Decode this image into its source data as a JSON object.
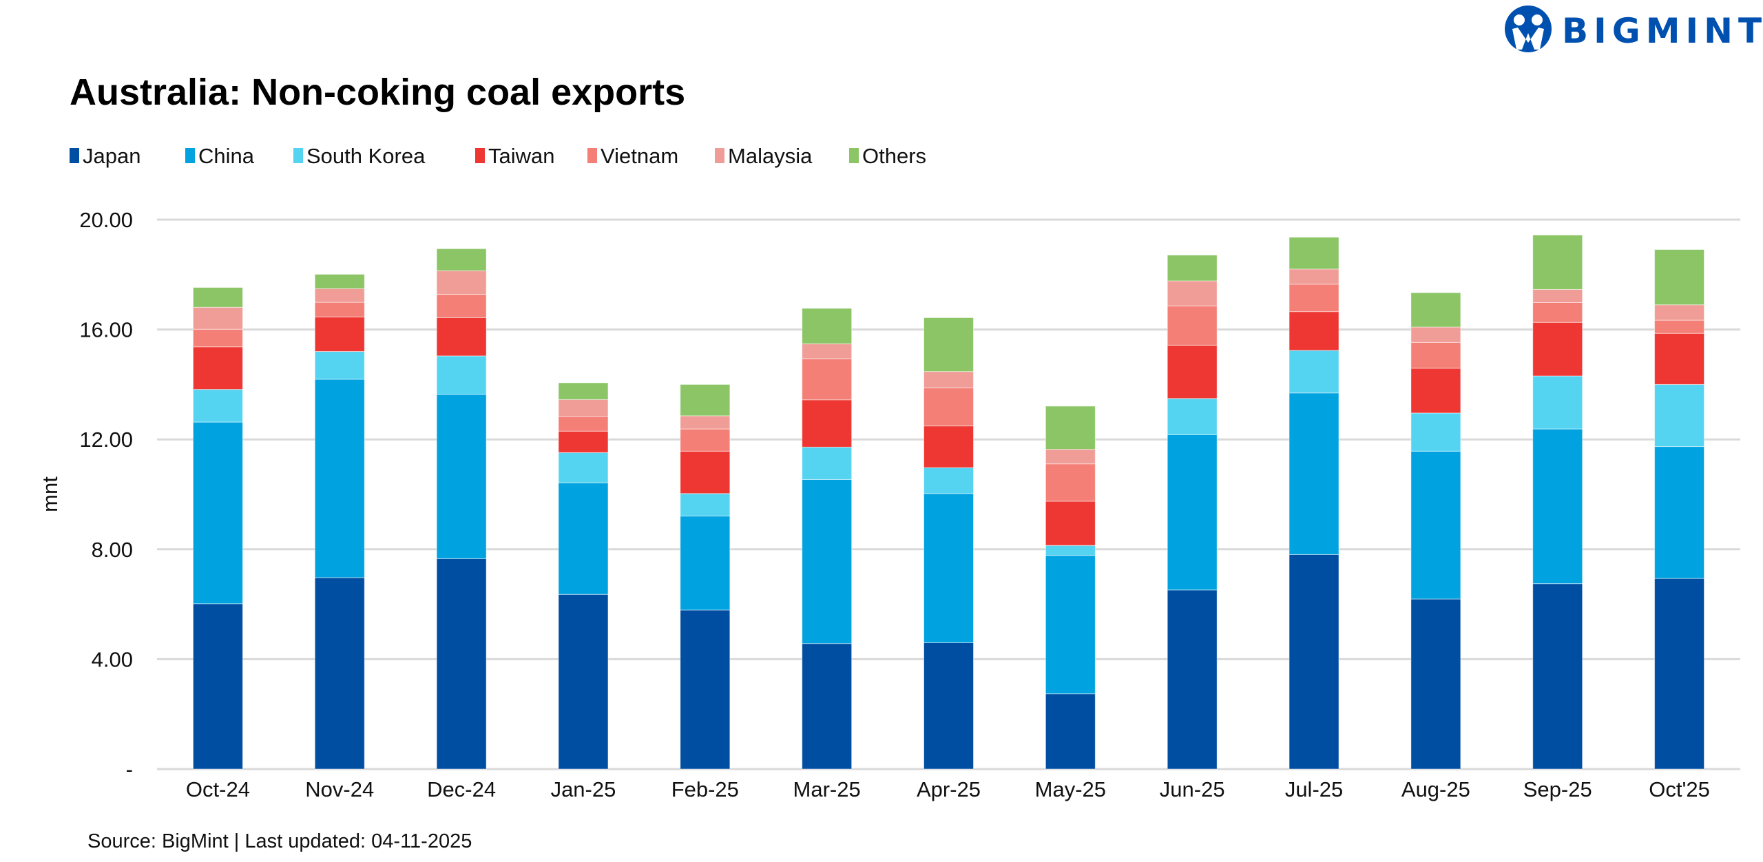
{
  "logo": {
    "text": "BIGMINT",
    "color": "#0050b0"
  },
  "chart_data": {
    "type": "bar",
    "stacked": true,
    "title": "Australia: Non-coking coal exports",
    "ylabel": "mnt",
    "xlabel": "",
    "ylim": [
      0,
      20
    ],
    "yticks": [
      0,
      4,
      8,
      12,
      16,
      20
    ],
    "ytick_labels": [
      "-",
      "4.00",
      "8.00",
      "12.00",
      "16.00",
      "20.00"
    ],
    "grid": true,
    "legend_position": "top-left",
    "categories": [
      "Oct-24",
      "Nov-24",
      "Dec-24",
      "Jan-25",
      "Feb-25",
      "Mar-25",
      "Apr-25",
      "May-25",
      "Jun-25",
      "Jul-25",
      "Aug-25",
      "Sep-25",
      "Oct'25"
    ],
    "series": [
      {
        "name": "Japan",
        "color": "#004ea2",
        "values": [
          6.02,
          6.97,
          7.66,
          6.36,
          5.79,
          4.57,
          4.6,
          2.74,
          6.52,
          7.81,
          6.19,
          6.75,
          6.94
        ]
      },
      {
        "name": "China",
        "color": "#00a3e0",
        "values": [
          6.61,
          7.22,
          5.98,
          4.06,
          3.42,
          5.97,
          5.43,
          5.04,
          5.65,
          5.88,
          5.38,
          5.63,
          4.8
        ]
      },
      {
        "name": "South Korea",
        "color": "#55d4f2",
        "values": [
          1.19,
          1.01,
          1.4,
          1.1,
          0.82,
          1.18,
          0.94,
          0.36,
          1.32,
          1.55,
          1.39,
          1.93,
          2.26
        ]
      },
      {
        "name": "Taiwan",
        "color": "#ee3733",
        "values": [
          1.55,
          1.26,
          1.39,
          0.78,
          1.54,
          1.72,
          1.52,
          1.61,
          1.94,
          1.41,
          1.63,
          1.95,
          1.86
        ]
      },
      {
        "name": "Vietnam",
        "color": "#f47f76",
        "values": [
          0.64,
          0.53,
          0.85,
          0.54,
          0.81,
          1.5,
          1.39,
          1.36,
          1.43,
          1.0,
          0.94,
          0.72,
          0.48
        ]
      },
      {
        "name": "Malaysia",
        "color": "#f09d97",
        "values": [
          0.8,
          0.5,
          0.86,
          0.61,
          0.48,
          0.54,
          0.59,
          0.53,
          0.91,
          0.55,
          0.56,
          0.48,
          0.56
        ]
      },
      {
        "name": "Others",
        "color": "#8bc565",
        "values": [
          0.72,
          0.52,
          0.8,
          0.61,
          1.14,
          1.29,
          1.96,
          1.57,
          0.94,
          1.16,
          1.25,
          1.98,
          2.01
        ]
      }
    ]
  },
  "footer": {
    "source": "Source: BigMint | Last updated: 04-11-2025"
  }
}
